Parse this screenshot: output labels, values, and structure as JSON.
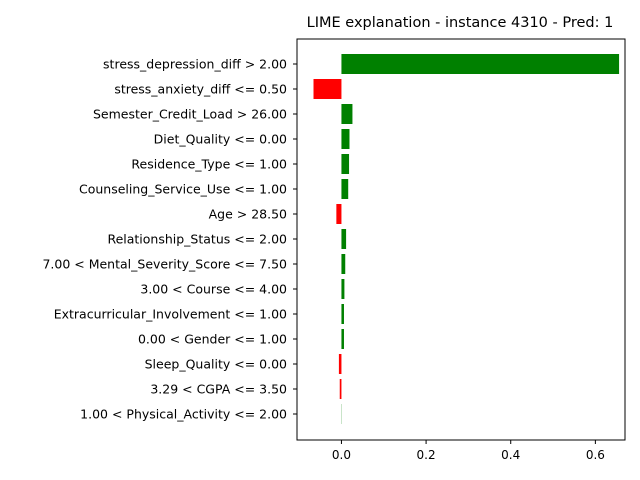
{
  "chart_data": {
    "type": "bar",
    "orientation": "horizontal",
    "title": "LIME explanation - instance 4310 - Pred: 1",
    "xlabel": "",
    "ylabel": "",
    "xlim": [
      -0.105,
      0.67
    ],
    "xticks": [
      0.0,
      0.2,
      0.4,
      0.6
    ],
    "xtick_labels": [
      "0.0",
      "0.2",
      "0.4",
      "0.6"
    ],
    "grid": false,
    "positive_color": "#008000",
    "negative_color": "#ff0000",
    "bars": [
      {
        "label": "stress_depression_diff > 2.00",
        "value": 0.656
      },
      {
        "label": "stress_anxiety_diff <= 0.50",
        "value": -0.066
      },
      {
        "label": "Semester_Credit_Load > 26.00",
        "value": 0.026
      },
      {
        "label": "Diet_Quality <= 0.00",
        "value": 0.019
      },
      {
        "label": "Residence_Type <= 1.00",
        "value": 0.018
      },
      {
        "label": "Counseling_Service_Use <= 1.00",
        "value": 0.016
      },
      {
        "label": "Age > 28.50",
        "value": -0.012
      },
      {
        "label": "Relationship_Status <= 2.00",
        "value": 0.011
      },
      {
        "label": "7.00 < Mental_Severity_Score <= 7.50",
        "value": 0.009
      },
      {
        "label": "3.00 < Course <= 4.00",
        "value": 0.007
      },
      {
        "label": "Extracurricular_Involvement <= 1.00",
        "value": 0.006
      },
      {
        "label": "0.00 < Gender <= 1.00",
        "value": 0.006
      },
      {
        "label": "Sleep_Quality <= 0.00",
        "value": -0.006
      },
      {
        "label": "3.29 < CGPA <= 3.50",
        "value": -0.004
      },
      {
        "label": "1.00 < Physical_Activity <= 2.00",
        "value": 0.0005
      }
    ]
  }
}
